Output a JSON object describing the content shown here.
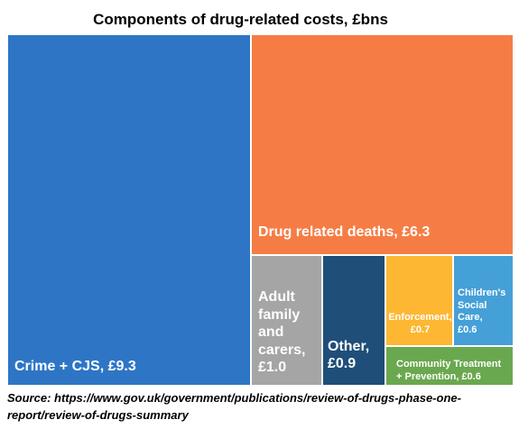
{
  "title": "Components of drug-related costs, £bns",
  "source": {
    "line1": "Source: https://www.gov.uk/government/publications/review-of-drugs-phase-one-",
    "line2": "report/review-of-drugs-summary"
  },
  "chart_data": {
    "type": "treemap",
    "title": "Components of drug-related costs, £bns",
    "unit": "£bns",
    "items": [
      {
        "name": "Crime + CJS",
        "value": 9.3,
        "label_lines": [
          "Crime + CJS, £9.3"
        ],
        "color": "#2E75C6"
      },
      {
        "name": "Drug related deaths",
        "value": 6.3,
        "label_lines": [
          "Drug related deaths, £6.3"
        ],
        "color": "#F57D45"
      },
      {
        "name": "Adult family and carers",
        "value": 1.0,
        "label_lines": [
          "Adult",
          "family",
          "and",
          "carers,",
          "£1.0"
        ],
        "color": "#A5A5A5"
      },
      {
        "name": "Other",
        "value": 0.9,
        "label_lines": [
          "Other,",
          "£0.9"
        ],
        "color": "#1F4E79"
      },
      {
        "name": "Enforcement",
        "value": 0.7,
        "label_lines": [
          "Enforcement,",
          "£0.7"
        ],
        "color": "#FDB733"
      },
      {
        "name": "Children's Social Care",
        "value": 0.6,
        "label_lines": [
          "Children's",
          "Social Care,",
          "£0.6"
        ],
        "color": "#45A0D8"
      },
      {
        "name": "Community Treatment + Prevention",
        "value": 0.6,
        "label_lines": [
          "Community Treatment",
          "+ Prevention, £0.6"
        ],
        "color": "#6AA84F"
      }
    ]
  }
}
